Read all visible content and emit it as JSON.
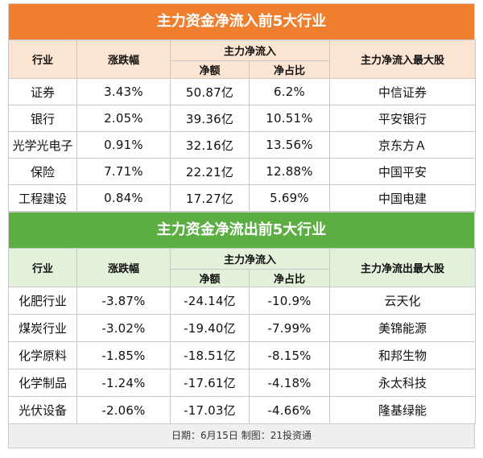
{
  "inflow": {
    "title": "主力资金净流入前5大行业",
    "headers": {
      "industry": "行业",
      "change": "涨跌幅",
      "group": "主力净流入",
      "net": "净额",
      "ratio": "净占比",
      "stock": "主力净流入最大股"
    },
    "rows": [
      {
        "industry": "证券",
        "change": "3.43%",
        "net": "50.87亿",
        "ratio": "6.2%",
        "stock": "中信证券"
      },
      {
        "industry": "银行",
        "change": "2.05%",
        "net": "39.36亿",
        "ratio": "10.51%",
        "stock": "平安银行"
      },
      {
        "industry": "光学光电子",
        "change": "0.91%",
        "net": "32.16亿",
        "ratio": "13.56%",
        "stock": "京东方Ａ"
      },
      {
        "industry": "保险",
        "change": "7.71%",
        "net": "22.21亿",
        "ratio": "12.88%",
        "stock": "中国平安"
      },
      {
        "industry": "工程建设",
        "change": "0.84%",
        "net": "17.27亿",
        "ratio": "5.69%",
        "stock": "中国电建"
      }
    ]
  },
  "outflow": {
    "title": "主力资金净流出前5大行业",
    "headers": {
      "industry": "行业",
      "change": "涨跌幅",
      "group": "主力净流入",
      "net": "净额",
      "ratio": "净占比",
      "stock": "主力净流出最大股"
    },
    "rows": [
      {
        "industry": "化肥行业",
        "change": "-3.87%",
        "net": "-24.14亿",
        "ratio": "-10.9%",
        "stock": "云天化"
      },
      {
        "industry": "煤炭行业",
        "change": "-3.02%",
        "net": "-19.40亿",
        "ratio": "-7.99%",
        "stock": "美锦能源"
      },
      {
        "industry": "化学原料",
        "change": "-1.85%",
        "net": "-18.51亿",
        "ratio": "-8.15%",
        "stock": "和邦生物"
      },
      {
        "industry": "化学制品",
        "change": "-1.24%",
        "net": "-17.61亿",
        "ratio": "-4.18%",
        "stock": "永太科技"
      },
      {
        "industry": "光伏设备",
        "change": "-2.06%",
        "net": "-17.03亿",
        "ratio": "-4.66%",
        "stock": "隆基绿能"
      }
    ]
  },
  "footer": "日期：6月15日  制图：21投资通",
  "colors": {
    "inflow_title": "#ef7e2f",
    "outflow_title": "#5cae43",
    "inflow_header": "#fce4d3",
    "outflow_header": "#e3f1db"
  }
}
